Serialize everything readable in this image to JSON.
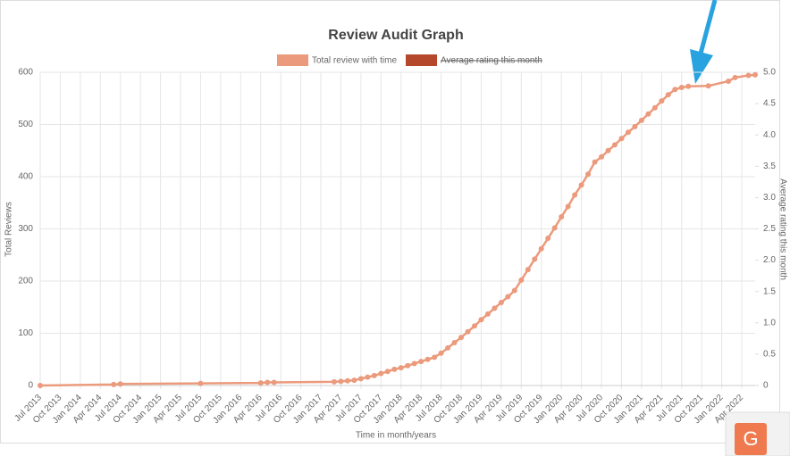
{
  "chart_data": {
    "type": "line",
    "title": "Review Audit Graph",
    "x_label": "Time in month/years",
    "y_label": "Total Reviews",
    "y2_label": "Average rating this month",
    "x": [
      "2013-07",
      "2014-06",
      "2014-07",
      "2015-07",
      "2016-04",
      "2016-05",
      "2016-06",
      "2017-03",
      "2017-04",
      "2017-05",
      "2017-06",
      "2017-07",
      "2017-08",
      "2017-09",
      "2017-10",
      "2017-11",
      "2017-12",
      "2018-01",
      "2018-02",
      "2018-03",
      "2018-04",
      "2018-05",
      "2018-06",
      "2018-07",
      "2018-08",
      "2018-09",
      "2018-10",
      "2018-11",
      "2018-12",
      "2019-01",
      "2019-02",
      "2019-03",
      "2019-04",
      "2019-05",
      "2019-06",
      "2019-07",
      "2019-08",
      "2019-09",
      "2019-10",
      "2019-11",
      "2019-12",
      "2020-01",
      "2020-02",
      "2020-03",
      "2020-04",
      "2020-05",
      "2020-06",
      "2020-07",
      "2020-08",
      "2020-09",
      "2020-10",
      "2020-11",
      "2020-12",
      "2021-01",
      "2021-02",
      "2021-03",
      "2021-04",
      "2021-05",
      "2021-06",
      "2021-07",
      "2021-08",
      "2021-11",
      "2022-02",
      "2022-03",
      "2022-05",
      "2022-06"
    ],
    "series": [
      {
        "name": "Total review with time",
        "color": "#eb9a7c",
        "values": [
          0,
          2,
          3,
          4,
          5,
          6,
          6,
          7,
          8,
          9,
          10,
          13,
          16,
          19,
          23,
          27,
          31,
          34,
          38,
          42,
          46,
          50,
          54,
          62,
          72,
          82,
          92,
          103,
          114,
          126,
          137,
          148,
          159,
          170,
          182,
          202,
          222,
          242,
          262,
          282,
          302,
          323,
          343,
          365,
          384,
          405,
          428,
          438,
          450,
          461,
          473,
          485,
          496,
          508,
          520,
          532,
          545,
          557,
          567,
          571,
          573,
          574,
          583,
          590,
          594,
          595
        ]
      },
      {
        "name": "Average rating this month",
        "color": "#b5472a",
        "axis": "y2",
        "hidden": true
      }
    ],
    "xlim": [
      "2013-07",
      "2022-06"
    ],
    "xticks": [
      {
        "value": "2013-07",
        "label": "Jul 2013"
      },
      {
        "value": "2013-10",
        "label": "Oct 2013"
      },
      {
        "value": "2014-01",
        "label": "Jan 2014"
      },
      {
        "value": "2014-04",
        "label": "Apr 2014"
      },
      {
        "value": "2014-07",
        "label": "Jul 2014"
      },
      {
        "value": "2014-10",
        "label": "Oct 2014"
      },
      {
        "value": "2015-01",
        "label": "Jan 2015"
      },
      {
        "value": "2015-04",
        "label": "Apr 2015"
      },
      {
        "value": "2015-07",
        "label": "Jul 2015"
      },
      {
        "value": "2015-10",
        "label": "Oct 2015"
      },
      {
        "value": "2016-01",
        "label": "Jan 2016"
      },
      {
        "value": "2016-04",
        "label": "Apr 2016"
      },
      {
        "value": "2016-07",
        "label": "Jul 2016"
      },
      {
        "value": "2016-10",
        "label": "Oct 2016"
      },
      {
        "value": "2017-01",
        "label": "Jan 2017"
      },
      {
        "value": "2017-04",
        "label": "Apr 2017"
      },
      {
        "value": "2017-07",
        "label": "Jul 2017"
      },
      {
        "value": "2017-10",
        "label": "Oct 2017"
      },
      {
        "value": "2018-01",
        "label": "Jan 2018"
      },
      {
        "value": "2018-04",
        "label": "Apr 2018"
      },
      {
        "value": "2018-07",
        "label": "Jul 2018"
      },
      {
        "value": "2018-10",
        "label": "Oct 2018"
      },
      {
        "value": "2019-01",
        "label": "Jan 2019"
      },
      {
        "value": "2019-04",
        "label": "Apr 2019"
      },
      {
        "value": "2019-07",
        "label": "Jul 2019"
      },
      {
        "value": "2019-10",
        "label": "Oct 2019"
      },
      {
        "value": "2020-01",
        "label": "Jan 2020"
      },
      {
        "value": "2020-04",
        "label": "Apr 2020"
      },
      {
        "value": "2020-07",
        "label": "Jul 2020"
      },
      {
        "value": "2020-10",
        "label": "Oct 2020"
      },
      {
        "value": "2021-01",
        "label": "Jan 2021"
      },
      {
        "value": "2021-04",
        "label": "Apr 2021"
      },
      {
        "value": "2021-07",
        "label": "Jul 2021"
      },
      {
        "value": "2021-10",
        "label": "Oct 2021"
      },
      {
        "value": "2022-01",
        "label": "Jan 2022"
      },
      {
        "value": "2022-04",
        "label": "Apr 2022"
      }
    ],
    "ylim": [
      0,
      600
    ],
    "yticks": [
      0,
      100,
      200,
      300,
      400,
      500,
      600
    ],
    "y2lim": [
      0,
      5
    ],
    "y2ticks": [
      0,
      0.5,
      {
        "value": 1,
        "label": "1.0"
      },
      1.5,
      {
        "value": 2,
        "label": "2.0"
      },
      2.5,
      {
        "value": 3,
        "label": "3.0"
      },
      3.5,
      {
        "value": 4,
        "label": "4.0"
      },
      4.5,
      {
        "value": 5,
        "label": "5.0"
      }
    ],
    "grid": true
  },
  "badge_text": "G"
}
